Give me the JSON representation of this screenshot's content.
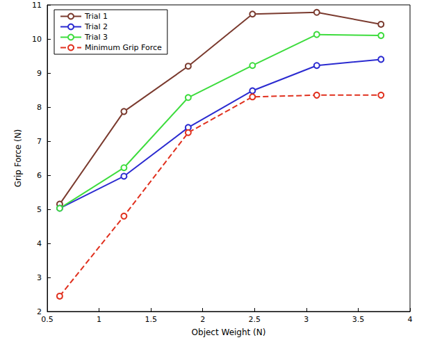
{
  "chart_data": {
    "type": "line",
    "x_label": "Object Weight (N)",
    "y_label": "Grip Force (N)",
    "x": [
      0.62,
      1.24,
      1.86,
      2.48,
      3.1,
      3.72
    ],
    "series": [
      {
        "name": "Trial 1",
        "color": "#7a3a2e",
        "marker": "circle",
        "line_style": "solid",
        "values": [
          5.15,
          7.87,
          9.2,
          10.73,
          10.78,
          10.43
        ]
      },
      {
        "name": "Trial 2",
        "color": "#2a2ad0",
        "marker": "circle",
        "line_style": "solid",
        "values": [
          5.03,
          5.97,
          7.4,
          8.48,
          9.22,
          9.4
        ]
      },
      {
        "name": "Trial 3",
        "color": "#3ddc3d",
        "marker": "circle",
        "line_style": "solid",
        "values": [
          5.03,
          6.22,
          8.28,
          9.22,
          10.13,
          10.1
        ]
      },
      {
        "name": "Minimum Grip Force",
        "color": "#e0301e",
        "marker": "circle",
        "line_style": "dashed",
        "values": [
          2.45,
          4.8,
          7.25,
          8.3,
          8.35,
          8.35
        ]
      }
    ],
    "xlim": [
      0.5,
      4
    ],
    "xticks": [
      0.5,
      1,
      1.5,
      2,
      2.5,
      3,
      3.5,
      4
    ],
    "ylim": [
      2,
      11
    ],
    "yticks": [
      2,
      3,
      4,
      5,
      6,
      7,
      8,
      9,
      10,
      11
    ],
    "grid": false,
    "legend": "upper left"
  }
}
